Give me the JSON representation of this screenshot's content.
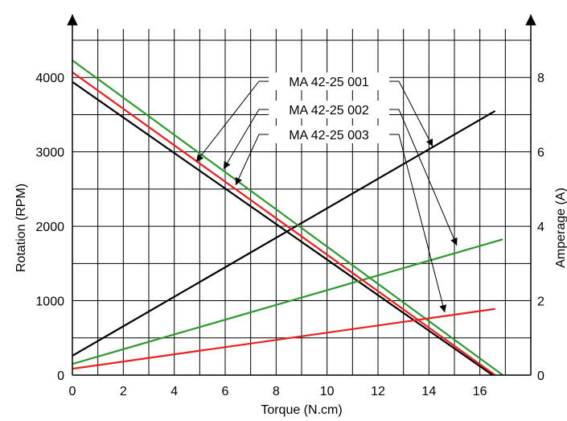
{
  "chart_data": {
    "type": "line",
    "title": "",
    "xlabel": "Torque (N.cm)",
    "ylabel_left": "Rotation (RPM)",
    "ylabel_right": "Amperage (A)",
    "xlim": [
      0,
      18
    ],
    "ylim_left": [
      0,
      4500
    ],
    "ylim_right": [
      0,
      9
    ],
    "x_ticks": [
      0,
      2,
      4,
      6,
      8,
      10,
      12,
      14,
      16
    ],
    "y_left_ticks": [
      0,
      1000,
      2000,
      3000,
      4000
    ],
    "y_right_ticks": [
      0,
      2,
      4,
      6,
      8
    ],
    "grid": true,
    "series": [
      {
        "name": "MA 42-25 001",
        "color": "#000000",
        "speed": {
          "x": [
            0,
            16.5
          ],
          "y": [
            3940,
            0
          ]
        },
        "current": {
          "x": [
            0,
            16.6
          ],
          "y": [
            0.52,
            7.1
          ]
        }
      },
      {
        "name": "MA 42-25 002",
        "color": "#2e9a2e",
        "speed": {
          "x": [
            0,
            16.9
          ],
          "y": [
            4230,
            0
          ]
        },
        "current": {
          "x": [
            0,
            16.9
          ],
          "y": [
            0.3,
            3.65
          ]
        }
      },
      {
        "name": "MA 42-25 003",
        "color": "#ee1c1c",
        "speed": {
          "x": [
            0,
            16.6
          ],
          "y": [
            4070,
            0
          ]
        },
        "current": {
          "x": [
            0,
            16.6
          ],
          "y": [
            0.17,
            1.78
          ]
        }
      }
    ]
  }
}
